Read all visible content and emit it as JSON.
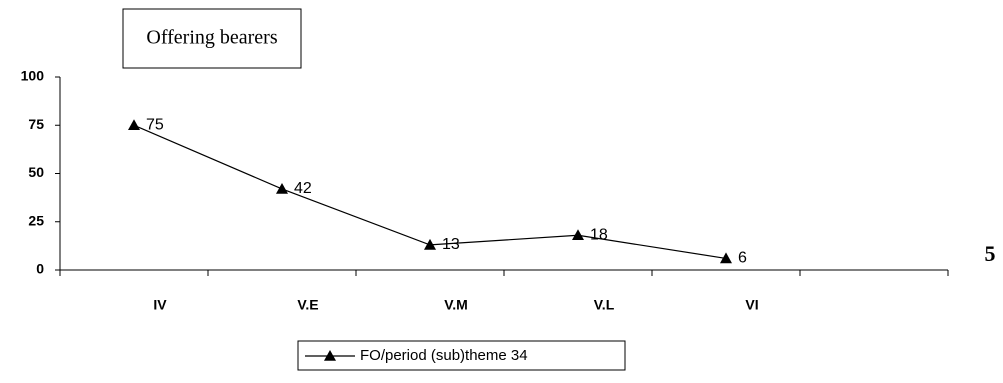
{
  "chart_data": {
    "type": "line",
    "title": "Offering bearers",
    "categories": [
      "IV",
      "V.E",
      "V.M",
      "V.L",
      "VI",
      null
    ],
    "series": [
      {
        "name": "FO/period (sub)theme 34",
        "color": "#000000",
        "values": [
          75,
          42,
          13,
          18,
          6,
          null
        ]
      }
    ],
    "ylim": [
      0,
      100
    ],
    "yticks": [
      0,
      25,
      50,
      75,
      100
    ],
    "grid": false,
    "legend": "bottom",
    "annotation": "5"
  }
}
